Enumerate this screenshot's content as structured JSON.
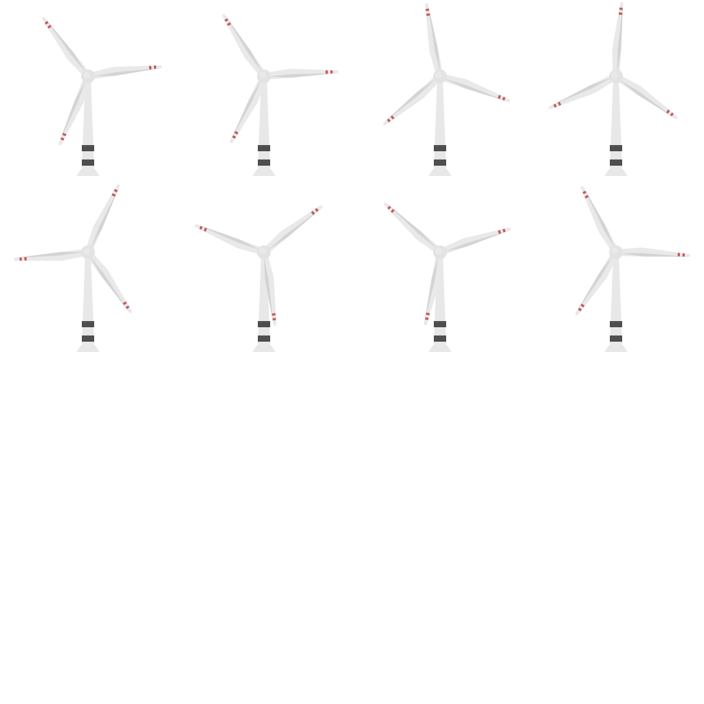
{
  "sprite_sheet": {
    "subject": "wind-turbine",
    "frames": [
      {
        "rotation_deg": -37
      },
      {
        "rotation_deg": -33
      },
      {
        "rotation_deg": -10
      },
      {
        "rotation_deg": 5
      },
      {
        "rotation_deg": 25
      },
      {
        "rotation_deg": 52
      },
      {
        "rotation_deg": 72
      },
      {
        "rotation_deg": 93
      }
    ]
  },
  "colors": {
    "background": "#ffffff",
    "tower": "#e8e8e9",
    "blade": "#e9e9ea",
    "blade_shadow": "#d4d4d6",
    "hub": "#e3e3e5",
    "tip_stripe": "#c45858",
    "base_band": "#4e4e50"
  }
}
